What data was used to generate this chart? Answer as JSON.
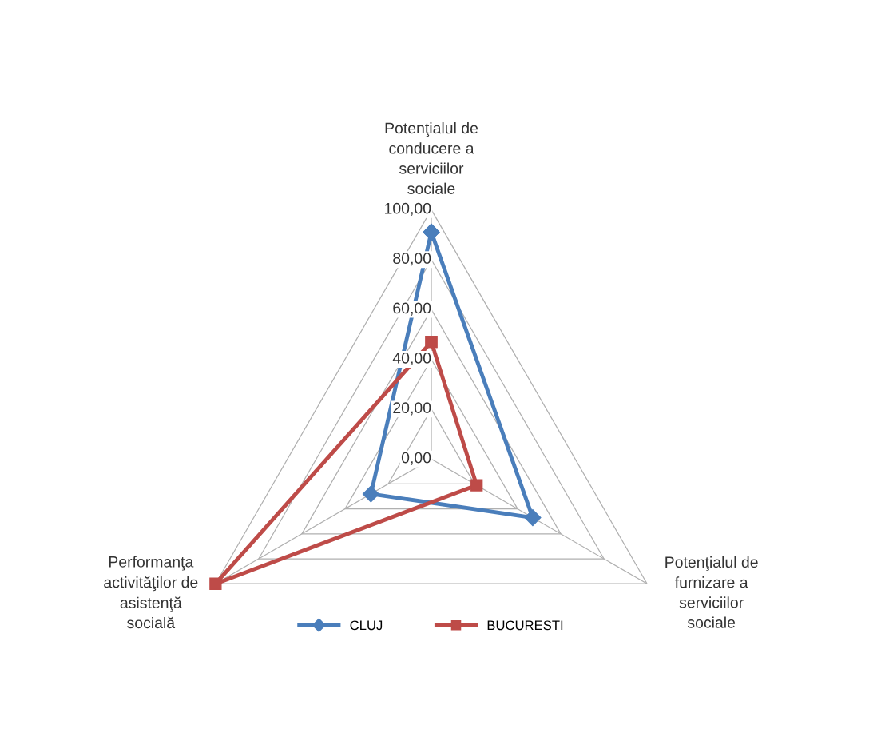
{
  "chart_data": {
    "type": "radar",
    "categories": [
      "Potenţialul de conducere a serviciilor sociale",
      "Potenţialul de furnizare a serviciilor sociale",
      "Performanţa activităţilor de asistenţă socială"
    ],
    "series": [
      {
        "name": "CLUJ",
        "color": "#4a7ebb",
        "marker": "diamond",
        "values": [
          91,
          47,
          28
        ]
      },
      {
        "name": "BUCURESTI",
        "color": "#be4b48",
        "marker": "square",
        "values": [
          47,
          21,
          100
        ]
      }
    ],
    "ylim": [
      0,
      100
    ],
    "yticks": [
      {
        "value": 0,
        "label": "0,00"
      },
      {
        "value": 20,
        "label": "20,00"
      },
      {
        "value": 40,
        "label": "40,00"
      },
      {
        "value": 60,
        "label": "60,00"
      },
      {
        "value": 80,
        "label": "80,00"
      },
      {
        "value": 100,
        "label": "100,00"
      }
    ],
    "grid": true,
    "legend": "bottom"
  }
}
